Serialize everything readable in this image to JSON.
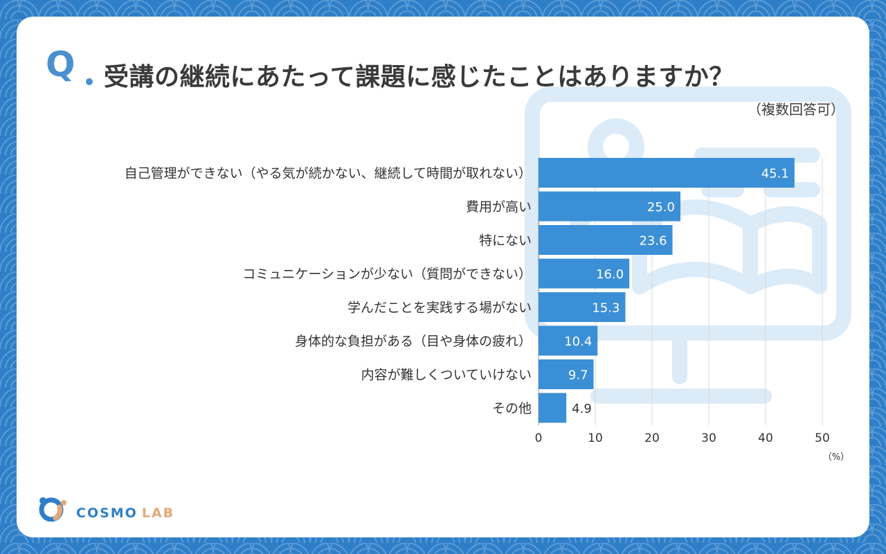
{
  "header": {
    "q_mark": "Q",
    "title": "受講の継続にあたって課題に感じたことはありますか？",
    "subtitle": "（複数回答可）"
  },
  "chart_data": {
    "type": "bar",
    "orientation": "horizontal",
    "categories": [
      "自己管理ができない（やる気が続かない、継続して時間が取れない）",
      "費用が高い",
      "特にない",
      "コミュニケーションが少ない（質問ができない）",
      "学んだことを実践する場がない",
      "身体的な負担がある（目や身体の疲れ）",
      "内容が難しくついていけない",
      "その他"
    ],
    "values": [
      45.1,
      25.0,
      23.6,
      16.0,
      15.3,
      10.4,
      9.7,
      4.9
    ],
    "value_labels": [
      "45.1",
      "25.0",
      "23.6",
      "16.0",
      "15.3",
      "10.4",
      "9.7",
      "4.9"
    ],
    "xticks": [
      "0",
      "10",
      "20",
      "30",
      "40",
      "50"
    ],
    "xlim": [
      0,
      50
    ],
    "unit": "（%）",
    "grid": "vertical",
    "bar_color": "#3b8fd6"
  },
  "logo": {
    "part1": "COSMO",
    "part2": "LAB"
  },
  "colors": {
    "background": "#2f7fc8",
    "accent": "#4a8fd0",
    "logo_orange": "#e6a877"
  }
}
